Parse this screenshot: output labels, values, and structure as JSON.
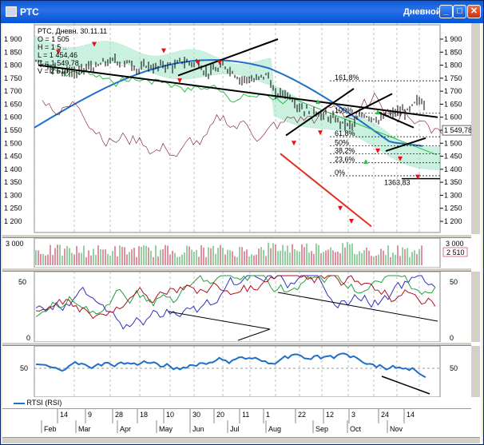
{
  "window": {
    "title": "РТС",
    "mode": "Дневной"
  },
  "price_panel": {
    "y_ticks": [
      "1 900",
      "1 850",
      "1 800",
      "1 750",
      "1 700",
      "1 650",
      "1 600",
      "1 550",
      "1 500",
      "1 450",
      "1 400",
      "1 350",
      "1 300",
      "1 250",
      "1 200"
    ],
    "info_lines": [
      "РТС, Дневн. 30.11.11",
      "O = 1 505",
      "H = 1 5 ..",
      "L = 1 454,46",
      "C = 1 549,78",
      "V = 2 510"
    ],
    "last_price": "1 549,78",
    "fib_labels": [
      "161,8%",
      "100%",
      "61,8%",
      "50%",
      "38,2%",
      "23,6%",
      "0%"
    ],
    "level_label": "1363,83"
  },
  "volume_panel": {
    "y_tick": "3 000",
    "right_tick": "3 000",
    "last_value": "2 510"
  },
  "osc_panel": {
    "left_ticks": [
      "50",
      "0"
    ],
    "right_ticks": [
      "50",
      "0"
    ]
  },
  "rsi_panel": {
    "left_tick": "50",
    "right_tick": "50",
    "legend": "RTSI (RSI)"
  },
  "x_axis": {
    "day_labels": [
      "14",
      "9",
      "28",
      "18",
      "10",
      "30",
      "20",
      "11",
      "1",
      "22",
      "12",
      "3",
      "24",
      "14"
    ],
    "month_labels": [
      "Feb",
      "Mar",
      "Apr",
      "May",
      "Jun",
      "Jul",
      "Aug",
      "Sep",
      "Oct",
      "Nov"
    ]
  },
  "colors": {
    "title_bar": "#0a5bd8",
    "sma_long": "#1f6fc8",
    "cloud": "#9fe6c8",
    "cloud_dots": "#3cb371",
    "support_line": "#e03020",
    "trend_line": "#000000",
    "price_bars": "#000000",
    "signal": "#e81010"
  },
  "icons": [
    "app-icon",
    "minimize-icon",
    "maximize-icon",
    "close-icon"
  ]
}
